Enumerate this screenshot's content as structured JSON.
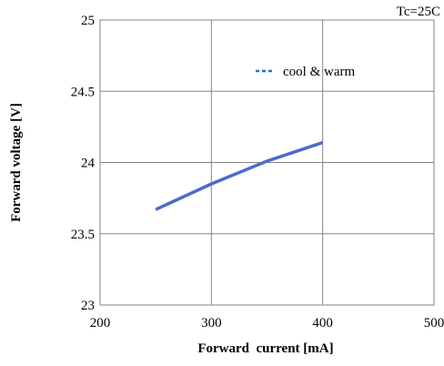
{
  "chart_data": {
    "type": "line",
    "title": "",
    "annotation": "Tc=25C",
    "xlabel": "Forward  current [mA]",
    "ylabel": "Forward voltage [V]",
    "xlim": [
      200,
      500
    ],
    "ylim": [
      23,
      25
    ],
    "x_ticks": [
      200,
      300,
      400,
      500
    ],
    "x_tick_labels": [
      "200",
      "300",
      "400",
      "500"
    ],
    "y_ticks": [
      23,
      23.5,
      24,
      24.5,
      25
    ],
    "y_tick_labels": [
      "23",
      "23.5",
      "24",
      "24.5",
      "25"
    ],
    "grid": true,
    "legend_position": "top-right",
    "series": [
      {
        "name": "cool & warm",
        "color": "#4F6ACB",
        "legend_color": "#1F6FD0",
        "x": [
          250,
          300,
          350,
          400
        ],
        "y": [
          23.67,
          23.85,
          24.01,
          24.14
        ]
      }
    ]
  }
}
